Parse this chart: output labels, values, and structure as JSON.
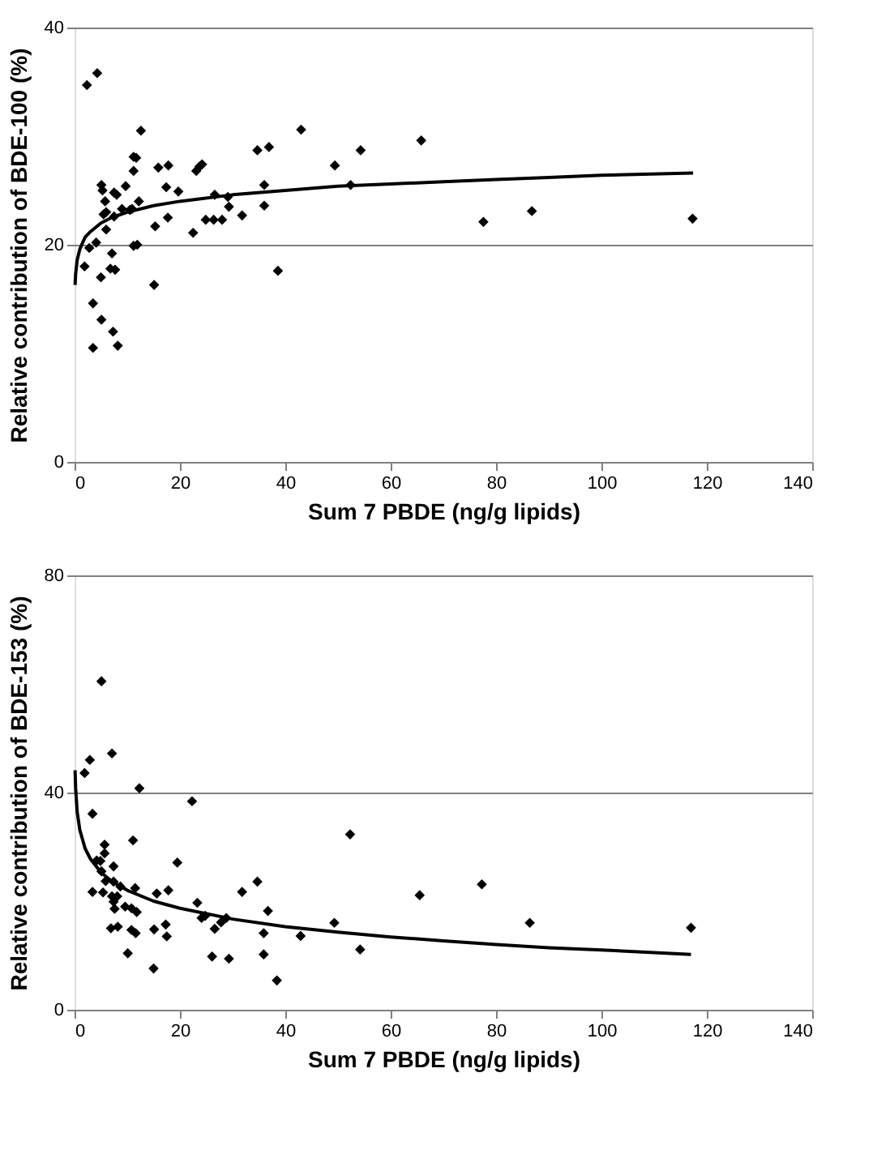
{
  "chart_data": [
    {
      "type": "scatter",
      "xlabel": "Sum 7 PBDE (ng/g lipids)",
      "ylabel": "Relative contribution of BDE-100 (%)",
      "xlim": [
        0,
        140
      ],
      "xticks": [
        0,
        20,
        40,
        60,
        80,
        100,
        120,
        140
      ],
      "ylim": [
        0,
        40
      ],
      "yticks": [
        0,
        20,
        40
      ],
      "grid": "y",
      "series": [
        {
          "marker": "diamond",
          "color": "#000000",
          "x": [
            2.35,
            4.3,
            12.6,
            11.2,
            11.7,
            11.2,
            15.9,
            17.8,
            23.1,
            23.7,
            24.2,
            34.7,
            36.9,
            43.0,
            5.1,
            5.3,
            7.5,
            8.0,
            9.7,
            17.4,
            19.7,
            26.6,
            29.1,
            36.0,
            5.8,
            12.2,
            5.5,
            6.0,
            7.5,
            9.0,
            10.5,
            10.9,
            29.3,
            36.0,
            31.8,
            24.9,
            26.4,
            28.0,
            17.7,
            15.3,
            22.5,
            6.0,
            4.1,
            2.8,
            11.2,
            11.9,
            7.1,
            1.9,
            6.8,
            7.7,
            5.0,
            15.1,
            38.6,
            3.5,
            5.1,
            7.3,
            3.5,
            8.2,
            49.4,
            54.3,
            52.4,
            65.8,
            77.6,
            86.8,
            117.3
          ],
          "values": [
            34.7,
            35.8,
            30.5,
            28.1,
            28.0,
            26.8,
            27.1,
            27.3,
            26.8,
            27.2,
            27.4,
            28.7,
            29.0,
            30.6,
            25.5,
            25.0,
            24.8,
            24.6,
            25.4,
            25.3,
            24.9,
            24.6,
            24.4,
            25.5,
            24.0,
            24.0,
            22.8,
            23.0,
            22.6,
            23.3,
            23.2,
            23.3,
            23.5,
            23.6,
            22.7,
            22.3,
            22.3,
            22.3,
            22.5,
            21.7,
            21.1,
            21.4,
            20.2,
            19.7,
            19.9,
            20.0,
            19.2,
            18.0,
            17.8,
            17.7,
            17.0,
            16.3,
            17.6,
            14.6,
            13.1,
            12.0,
            10.5,
            10.7,
            27.3,
            28.7,
            25.5,
            29.6,
            22.1,
            23.1,
            22.4
          ]
        },
        {
          "type": "line",
          "color": "#000000",
          "line_style": "solid",
          "x": [
            0.1,
            0.2,
            0.5,
            1,
            2,
            3,
            5,
            7,
            10,
            15,
            20,
            30,
            40,
            50,
            60,
            70,
            80,
            90,
            100,
            117.4
          ],
          "values": [
            16.3,
            17.3,
            18.6,
            19.6,
            20.7,
            21.2,
            22.0,
            22.5,
            23.0,
            23.6,
            24.0,
            24.6,
            25.0,
            25.4,
            25.6,
            25.8,
            26.0,
            26.2,
            26.4,
            26.6
          ]
        }
      ]
    },
    {
      "type": "scatter",
      "xlabel": "Sum 7 PBDE (ng/g lipids)",
      "ylabel": "Relative contribution of BDE-153 (%)",
      "xlim": [
        0,
        140
      ],
      "xticks": [
        0,
        20,
        40,
        60,
        80,
        100,
        120,
        140
      ],
      "ylim": [
        0,
        80
      ],
      "yticks": [
        0,
        40,
        80
      ],
      "grid": "y",
      "series": [
        {
          "marker": "diamond",
          "color": "#000000",
          "x": [
            5.1,
            7.1,
            2.9,
            1.9,
            12.3,
            22.3,
            3.4,
            11.1,
            5.7,
            5.7,
            4.2,
            4.9,
            7.4,
            19.5,
            5.1,
            5.9,
            7.4,
            8.7,
            11.5,
            3.4,
            5.4,
            7.1,
            8.1,
            7.4,
            7.6,
            9.6,
            10.8,
            11.8,
            15.6,
            17.8,
            23.3,
            24.1,
            24.8,
            27.8,
            28.8,
            26.6,
            31.8,
            34.7,
            36.7,
            6.9,
            8.2,
            10.8,
            11.6,
            15.1,
            17.3,
            17.5,
            35.9,
            42.9,
            10.1,
            26.1,
            29.3,
            35.9,
            15.0,
            38.4,
            52.3,
            49.3,
            54.2,
            65.5,
            77.3,
            86.4,
            117.0
          ],
          "values": [
            60.5,
            47.2,
            46.0,
            43.6,
            40.8,
            38.4,
            36.1,
            31.2,
            30.4,
            28.8,
            27.5,
            27.4,
            26.4,
            27.1,
            25.5,
            23.7,
            23.6,
            22.7,
            22.4,
            21.7,
            21.6,
            20.9,
            20.9,
            19.9,
            18.6,
            19.0,
            18.7,
            18.0,
            21.4,
            22.0,
            19.7,
            16.9,
            17.3,
            16.1,
            16.9,
            14.9,
            21.7,
            23.6,
            18.2,
            15.0,
            15.3,
            14.7,
            14.1,
            14.8,
            15.7,
            13.5,
            14.1,
            13.6,
            10.4,
            9.8,
            9.4,
            10.2,
            7.6,
            5.4,
            32.3,
            16.0,
            11.1,
            21.1,
            23.1,
            16.0,
            15.1
          ]
        },
        {
          "type": "line",
          "color": "#000000",
          "line_style": "solid",
          "x": [
            0.1,
            0.2,
            0.5,
            1,
            2,
            3,
            5,
            7,
            10,
            15,
            20,
            30,
            40,
            50,
            60,
            70,
            80,
            90,
            100,
            117
          ],
          "values": [
            44.1,
            40.8,
            36.4,
            33.1,
            29.7,
            27.8,
            25.3,
            23.7,
            22.0,
            20.0,
            18.7,
            16.7,
            15.3,
            14.3,
            13.4,
            12.7,
            12.0,
            11.4,
            11.0,
            10.2
          ]
        }
      ]
    }
  ]
}
